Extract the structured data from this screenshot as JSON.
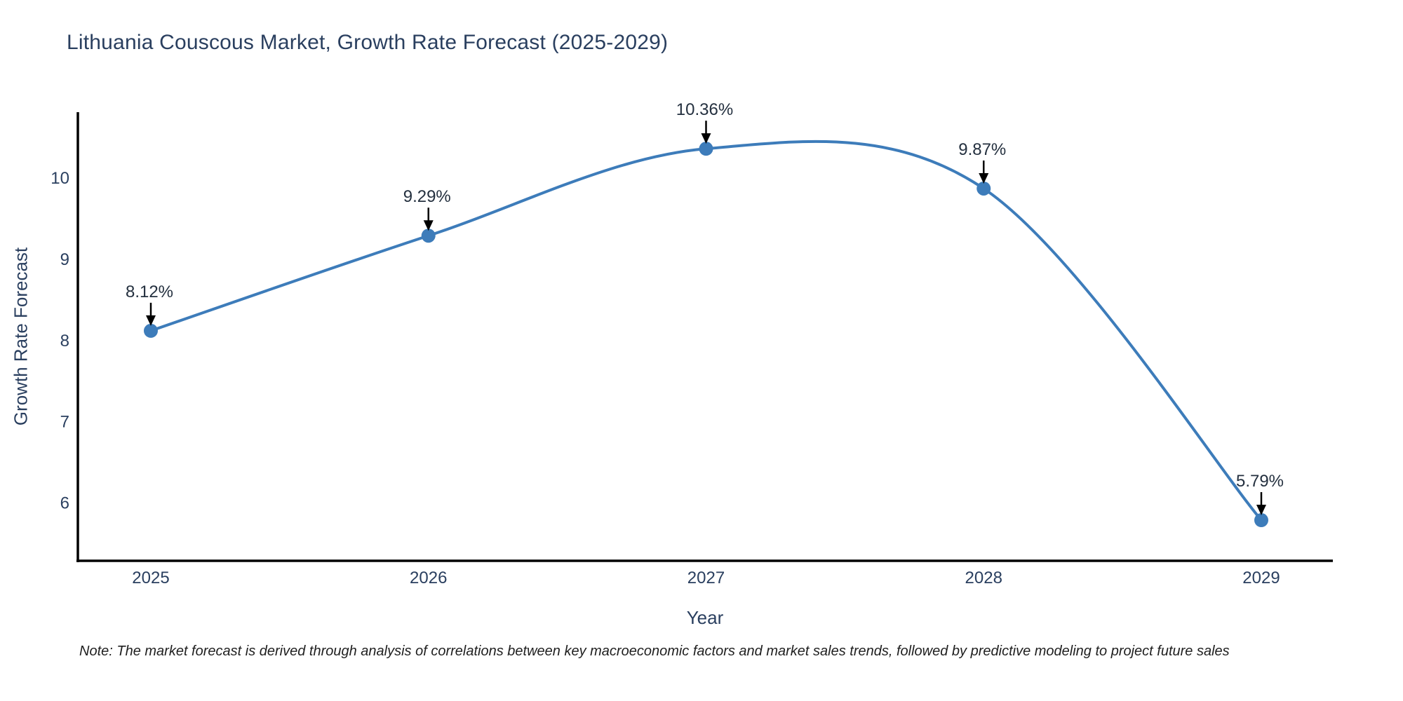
{
  "chart_data": {
    "type": "line",
    "title": "Lithuania Couscous Market, Growth Rate Forecast (2025-2029)",
    "xlabel": "Year",
    "ylabel": "Growth Rate Forecast",
    "x": [
      2025,
      2026,
      2027,
      2028,
      2029
    ],
    "series": [
      {
        "name": "Growth Rate Forecast",
        "values": [
          8.12,
          9.29,
          10.36,
          9.87,
          5.79
        ]
      }
    ],
    "annotations": [
      "8.12%",
      "9.29%",
      "10.36%",
      "9.87%",
      "5.79%"
    ],
    "yticks": [
      6,
      7,
      8,
      9,
      10
    ],
    "ylim": [
      5.29,
      10.81
    ],
    "line_shape": "spline",
    "grid": false,
    "legend_visible": false,
    "line_color": "#3d7cba",
    "marker_color": "#3d7cba",
    "axis_color": "#000000",
    "text_color": "#2a3f5f",
    "annotation_arrow_color": "#000000",
    "background_color": "#ffffff"
  },
  "note": "Note: The market forecast is derived through analysis of correlations between key macroeconomic factors and market sales trends, followed by predictive modeling to project future sales"
}
